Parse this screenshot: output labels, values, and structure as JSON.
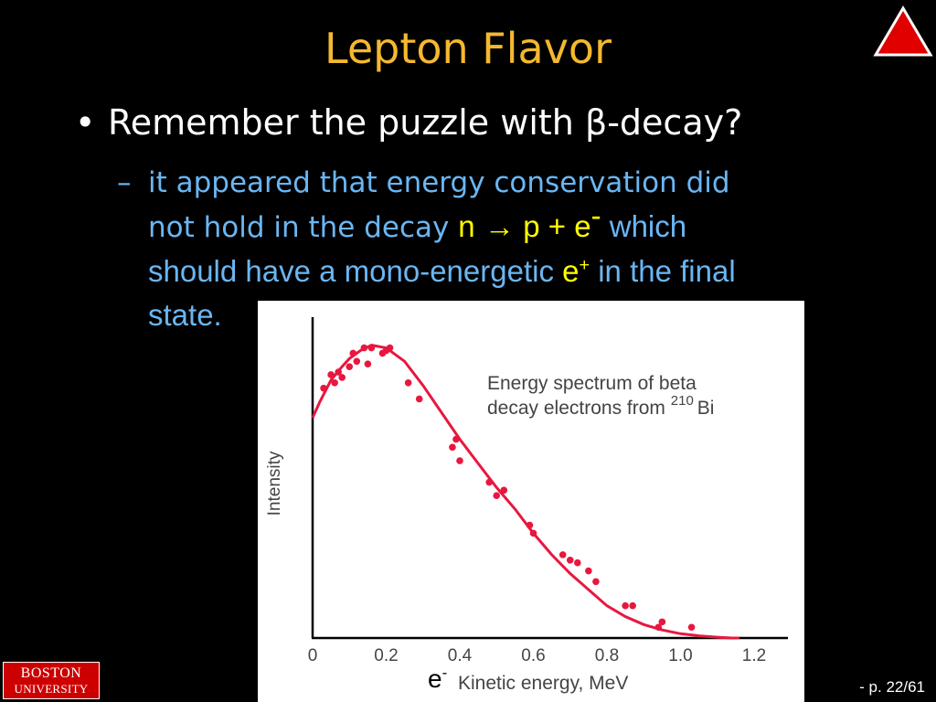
{
  "slide": {
    "title": "Lepton Flavor",
    "bullet": {
      "marker": "•",
      "text_before": "Remember the puzzle with ",
      "beta": "β",
      "text_after": "-decay?"
    },
    "sub_bullet": {
      "dash": "–",
      "line1": "it appeared that energy conservation did",
      "line2_a": "not hold  in the decay  ",
      "reaction_n": "n",
      "arrow": "→",
      "reaction_rest": " p + e",
      "minus": "-",
      "line2_b": "  which",
      "line3_a": "should have a mono-energetic ",
      "e": "e",
      "plus": "+",
      "line3_b": " in the final",
      "line4": "state."
    },
    "page": "- p. 22/61",
    "logo": {
      "line1": "BOSTON",
      "line2": "UNIVERSITY"
    },
    "colors": {
      "title": "#f5b82e",
      "bullet": "#ffffff",
      "sub": "#6ab6f3",
      "highlight": "#ffff00",
      "curve": "#e8173f",
      "logo": "#cc0000",
      "nav": "#e00000"
    },
    "icons": {
      "nav": "up-triangle-icon"
    }
  },
  "chart_data": {
    "type": "scatter",
    "annotation_line1": "Energy spectrum of beta",
    "annotation_line2a": "decay electrons from ",
    "annotation_isotope_mass": "210",
    "annotation_line2b": "Bi",
    "ylabel": "Intensity",
    "xlabel_e": "e",
    "xlabel_minus": "-",
    "xlabel": "Kinetic energy, MeV",
    "xlim": [
      0,
      1.2
    ],
    "ylim": [
      0,
      1.15
    ],
    "xticks": [
      "0",
      "0.2",
      "0.4",
      "0.6",
      "0.8",
      "1.0",
      "1.2"
    ],
    "curve": {
      "x": [
        0,
        0.02,
        0.05,
        0.08,
        0.1,
        0.13,
        0.16,
        0.2,
        0.25,
        0.3,
        0.35,
        0.4,
        0.45,
        0.5,
        0.55,
        0.6,
        0.65,
        0.7,
        0.75,
        0.8,
        0.85,
        0.9,
        0.95,
        1.0,
        1.05,
        1.1,
        1.14,
        1.16
      ],
      "y": [
        0.82,
        0.88,
        0.96,
        1.01,
        1.04,
        1.07,
        1.09,
        1.08,
        1.03,
        0.94,
        0.84,
        0.74,
        0.65,
        0.56,
        0.48,
        0.39,
        0.31,
        0.24,
        0.18,
        0.12,
        0.08,
        0.05,
        0.03,
        0.016,
        0.008,
        0.003,
        0.0,
        0.0
      ]
    },
    "points": {
      "x": [
        0.03,
        0.05,
        0.06,
        0.07,
        0.08,
        0.1,
        0.11,
        0.12,
        0.14,
        0.15,
        0.16,
        0.19,
        0.2,
        0.21,
        0.26,
        0.29,
        0.38,
        0.39,
        0.4,
        0.48,
        0.5,
        0.52,
        0.59,
        0.6,
        0.68,
        0.7,
        0.72,
        0.75,
        0.77,
        0.85,
        0.87,
        0.94,
        0.95,
        1.03
      ],
      "y": [
        0.93,
        0.98,
        0.95,
        0.99,
        0.97,
        1.01,
        1.06,
        1.03,
        1.08,
        1.02,
        1.08,
        1.06,
        1.07,
        1.08,
        0.95,
        0.89,
        0.71,
        0.74,
        0.66,
        0.58,
        0.53,
        0.55,
        0.42,
        0.39,
        0.31,
        0.29,
        0.28,
        0.25,
        0.21,
        0.12,
        0.12,
        0.04,
        0.06,
        0.04
      ]
    }
  }
}
